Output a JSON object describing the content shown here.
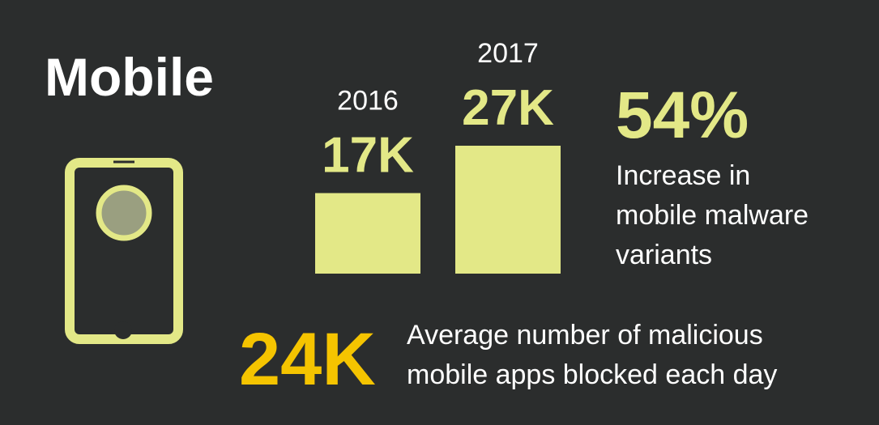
{
  "title": "Mobile",
  "chart_data": {
    "type": "bar",
    "categories": [
      "2016",
      "2017"
    ],
    "values": [
      17,
      27
    ],
    "value_labels": [
      "17K",
      "27K"
    ],
    "color": "#e3e887"
  },
  "stats": [
    {
      "value_label": "54%",
      "lines": [
        "Increase in",
        "mobile malware",
        "variants"
      ]
    },
    {
      "value_label": "24K",
      "lines": [
        "Average number of malicious",
        "mobile apps blocked each day"
      ]
    }
  ]
}
